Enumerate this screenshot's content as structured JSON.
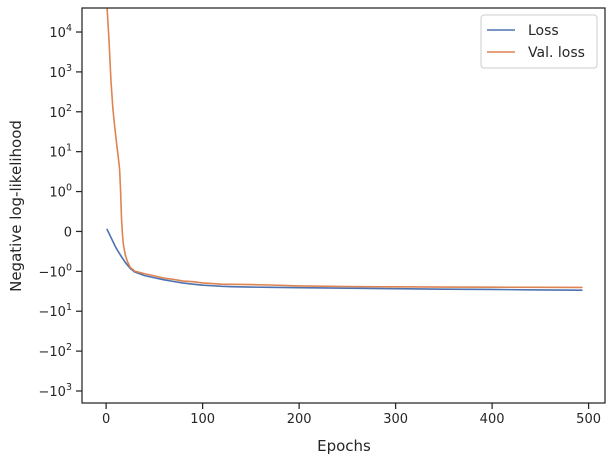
{
  "chart_data": {
    "type": "line",
    "xlabel": "Epochs",
    "ylabel": "Negative log-likelihood",
    "xlim": [
      -25,
      517
    ],
    "ylim": [
      -2000,
      40000
    ],
    "yscale": "symlog (linthresh 1)",
    "grid": false,
    "legend": "top-right",
    "x_ticks": [
      {
        "value": 0,
        "label": "0"
      },
      {
        "value": 100,
        "label": "100"
      },
      {
        "value": 200,
        "label": "200"
      },
      {
        "value": 300,
        "label": "300"
      },
      {
        "value": 400,
        "label": "400"
      },
      {
        "value": 500,
        "label": "500"
      }
    ],
    "y_ticks": [
      {
        "value": -1000,
        "label": "−10",
        "exp": "3"
      },
      {
        "value": -100,
        "label": "−10",
        "exp": "2"
      },
      {
        "value": -10,
        "label": "−10",
        "exp": "1"
      },
      {
        "value": -1,
        "label": "−10",
        "exp": "0"
      },
      {
        "value": 0,
        "label": "0",
        "exp": ""
      },
      {
        "value": 1,
        "label": "10",
        "exp": "0"
      },
      {
        "value": 10,
        "label": "10",
        "exp": "1"
      },
      {
        "value": 100,
        "label": "10",
        "exp": "2"
      },
      {
        "value": 1000,
        "label": "10",
        "exp": "3"
      },
      {
        "value": 10000,
        "label": "10",
        "exp": "4"
      }
    ],
    "series": [
      {
        "name": "Loss",
        "color": "#4c72b0",
        "x": [
          1,
          5,
          10,
          15,
          20,
          25,
          30,
          40,
          50,
          60,
          70,
          80,
          90,
          100,
          110,
          120,
          130,
          150,
          170,
          200,
          250,
          300,
          350,
          400,
          450,
          493
        ],
        "y": [
          0.05,
          -0.15,
          -0.4,
          -0.6,
          -0.78,
          -0.93,
          -1.05,
          -1.28,
          -1.45,
          -1.63,
          -1.8,
          -1.97,
          -2.1,
          -2.22,
          -2.3,
          -2.38,
          -2.42,
          -2.48,
          -2.52,
          -2.57,
          -2.64,
          -2.72,
          -2.8,
          -2.85,
          -2.92,
          -2.97
        ]
      },
      {
        "name": "Val. loss",
        "color": "#dd8452",
        "x": [
          1,
          3,
          5,
          7,
          9,
          11,
          13,
          14,
          15,
          16,
          17,
          18,
          20,
          22,
          25,
          30,
          40,
          50,
          60,
          70,
          80,
          90,
          100,
          120,
          150,
          170,
          200,
          250,
          300,
          350,
          400,
          450,
          493
        ],
        "y": [
          40000,
          6000,
          600,
          120,
          40,
          15,
          6,
          3.5,
          1,
          0.3,
          -0.1,
          -0.35,
          -0.6,
          -0.75,
          -0.9,
          -1.0,
          -1.15,
          -1.3,
          -1.48,
          -1.6,
          -1.75,
          -1.82,
          -1.95,
          -2.1,
          -2.15,
          -2.2,
          -2.32,
          -2.4,
          -2.45,
          -2.48,
          -2.5,
          -2.52,
          -2.53
        ]
      }
    ]
  }
}
